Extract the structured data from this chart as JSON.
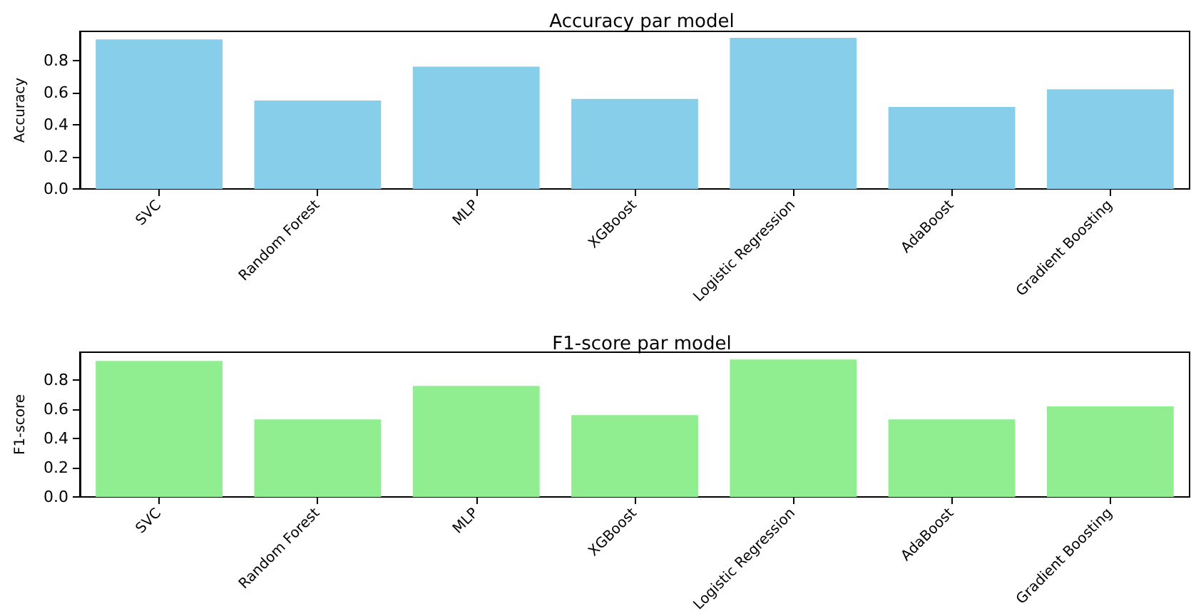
{
  "chart_data": [
    {
      "type": "bar",
      "title": "Accuracy par model",
      "ylabel": "Accuracy",
      "categories": [
        "SVC",
        "Random Forest",
        "MLP",
        "XGBoost",
        "Logistic Regression",
        "AdaBoost",
        "Gradient Boosting"
      ],
      "values": [
        0.93,
        0.55,
        0.76,
        0.56,
        0.94,
        0.51,
        0.62
      ],
      "color": "#87ceeb",
      "ylim": [
        0,
        0.98
      ],
      "yticks": [
        {
          "value": 0,
          "label": "0.0"
        },
        {
          "value": 0.2,
          "label": "0.2"
        },
        {
          "value": 0.4,
          "label": "0.4"
        },
        {
          "value": 0.6,
          "label": "0.6"
        },
        {
          "value": 0.8,
          "label": "0.8"
        }
      ]
    },
    {
      "type": "bar",
      "title": "F1-score par model",
      "ylabel": "F1-score",
      "categories": [
        "SVC",
        "Random Forest",
        "MLP",
        "XGBoost",
        "Logistic Regression",
        "AdaBoost",
        "Gradient Boosting"
      ],
      "values": [
        0.93,
        0.53,
        0.76,
        0.56,
        0.94,
        0.53,
        0.62
      ],
      "color": "#90ee90",
      "ylim": [
        0,
        0.99
      ],
      "yticks": [
        {
          "value": 0,
          "label": "0.0"
        },
        {
          "value": 0.2,
          "label": "0.2"
        },
        {
          "value": 0.4,
          "label": "0.4"
        },
        {
          "value": 0.6,
          "label": "0.6"
        },
        {
          "value": 0.8,
          "label": "0.8"
        }
      ]
    }
  ]
}
